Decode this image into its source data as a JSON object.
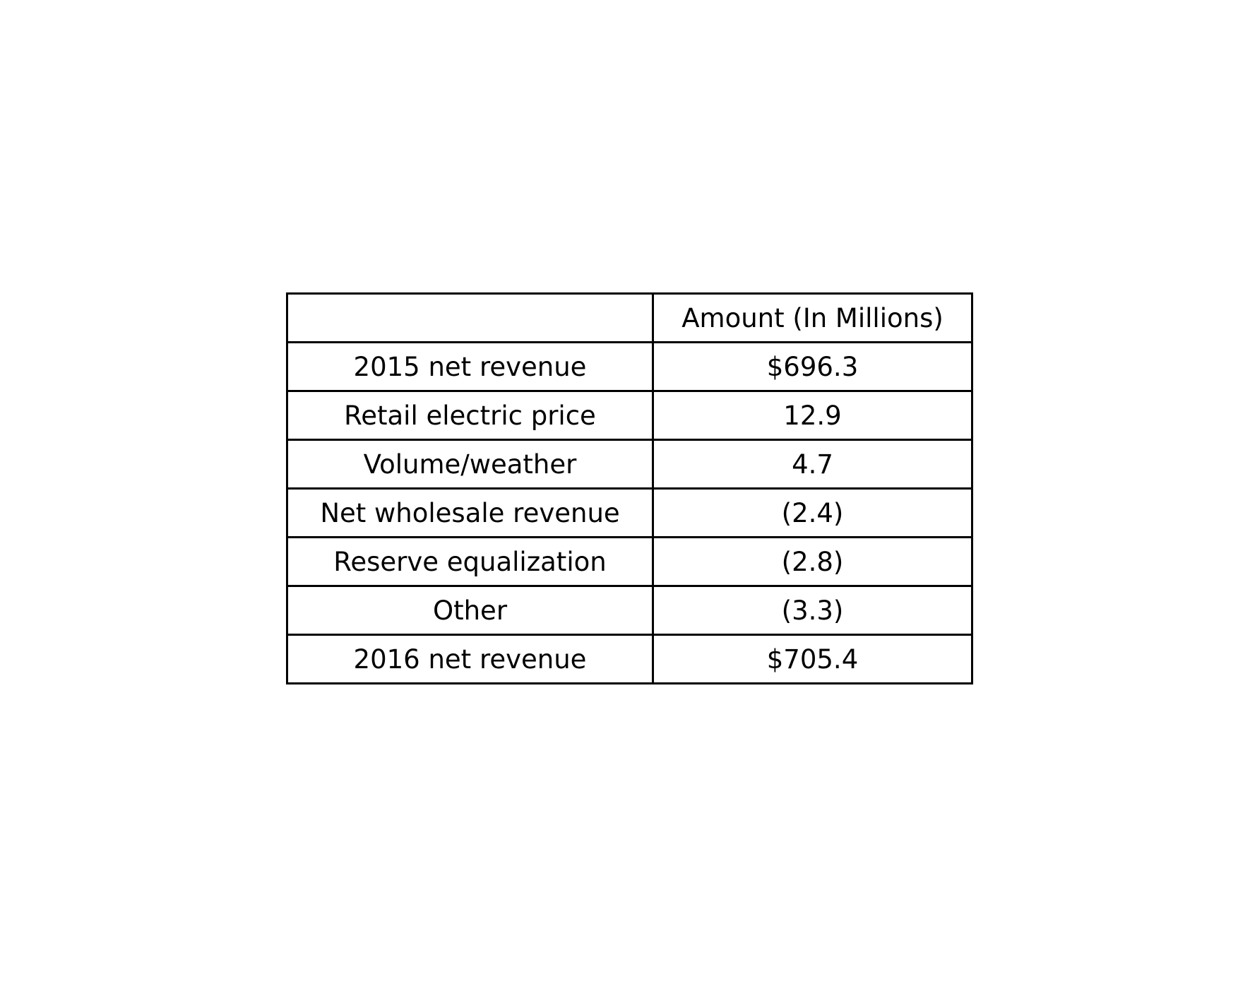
{
  "chart_data": {
    "type": "table",
    "columns": [
      "",
      "Amount (In Millions)"
    ],
    "rows": [
      {
        "label": "2015 net revenue",
        "value": "$696.3"
      },
      {
        "label": "Retail electric price",
        "value": "12.9"
      },
      {
        "label": "Volume/weather",
        "value": "4.7"
      },
      {
        "label": "Net wholesale revenue",
        "value": "(2.4)"
      },
      {
        "label": "Reserve equalization",
        "value": "(2.8)"
      },
      {
        "label": "Other",
        "value": "(3.3)"
      },
      {
        "label": "2016 net revenue",
        "value": "$705.4"
      }
    ]
  },
  "colors": {
    "border": "#000000",
    "text": "#000000",
    "background": "#ffffff"
  }
}
